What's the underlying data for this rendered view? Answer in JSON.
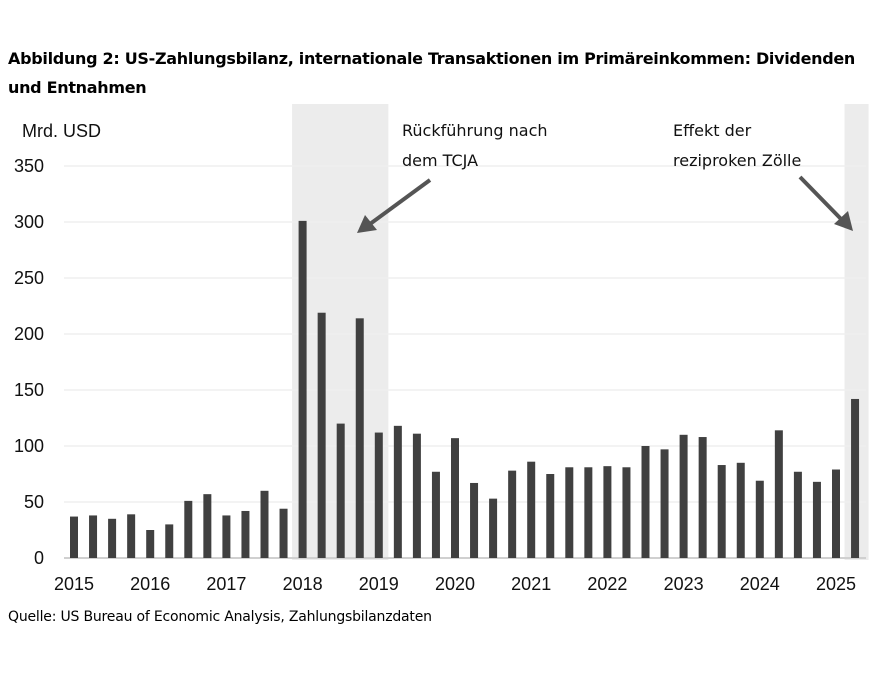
{
  "title": "Abbildung 2: US-Zahlungsbilanz, internationale Transaktionen im Primäreinkommen: Dividenden und Entnahmen",
  "source": "Quelle: US Bureau of Economic Analysis, Zahlungsbilanzdaten",
  "chart_data": {
    "type": "bar",
    "ylabel": "Mrd. USD",
    "ylim": [
      0,
      350
    ],
    "yticks": [
      "0",
      "50",
      "100",
      "150",
      "200",
      "250",
      "300",
      "350"
    ],
    "xticks": [
      "2015",
      "2016",
      "2017",
      "2018",
      "2019",
      "2020",
      "2021",
      "2022",
      "2023",
      "2024",
      "2025"
    ],
    "grid": true,
    "bar_color": "#404040",
    "shade_color": "#ececec",
    "categories": [
      "2015Q1",
      "2015Q2",
      "2015Q3",
      "2015Q4",
      "2016Q1",
      "2016Q2",
      "2016Q3",
      "2016Q4",
      "2017Q1",
      "2017Q2",
      "2017Q3",
      "2017Q4",
      "2018Q1",
      "2018Q2",
      "2018Q3",
      "2018Q4",
      "2019Q1",
      "2019Q2",
      "2019Q3",
      "2019Q4",
      "2020Q1",
      "2020Q2",
      "2020Q3",
      "2020Q4",
      "2021Q1",
      "2021Q2",
      "2021Q3",
      "2021Q4",
      "2022Q1",
      "2022Q2",
      "2022Q3",
      "2022Q4",
      "2023Q1",
      "2023Q2",
      "2023Q3",
      "2023Q4",
      "2024Q1",
      "2024Q2",
      "2024Q3",
      "2024Q4",
      "2025Q1",
      "2025Q2"
    ],
    "values": [
      37,
      38,
      35,
      39,
      25,
      30,
      51,
      57,
      38,
      42,
      60,
      44,
      301,
      219,
      120,
      214,
      112,
      118,
      111,
      77,
      107,
      67,
      53,
      78,
      86,
      75,
      81,
      81,
      82,
      81,
      100,
      97,
      110,
      108,
      83,
      85,
      69,
      114,
      77,
      68,
      79,
      142
    ],
    "shaded_ranges": [
      [
        "2018Q1",
        "2019Q1"
      ],
      [
        "2025Q2",
        "2025Q2"
      ]
    ],
    "annotations": [
      {
        "lines": [
          "Rückführung nach",
          "dem TCJA"
        ],
        "target": "2018Q4"
      },
      {
        "lines": [
          "Effekt der",
          "reziproken Zölle"
        ],
        "target": "2025Q2"
      }
    ]
  }
}
